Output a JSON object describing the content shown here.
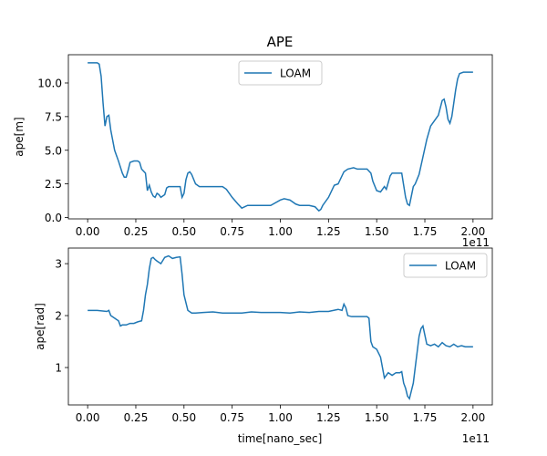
{
  "chart_data": [
    {
      "type": "line",
      "title": "APE",
      "xlabel": "",
      "ylabel": "ape[m]",
      "offset_label": "1e11",
      "xlim": [
        -0.1,
        2.1
      ],
      "ylim": [
        -0.1,
        12.1
      ],
      "xticks": [
        "0.00",
        "0.25",
        "0.50",
        "0.75",
        "1.00",
        "1.25",
        "1.50",
        "1.75",
        "2.00"
      ],
      "yticks": [
        "0.0",
        "2.5",
        "5.0",
        "7.5",
        "10.0"
      ],
      "legend": "top-center",
      "series": [
        {
          "name": "LOAM",
          "color": "#1f77b4",
          "x": [
            0.0,
            0.05,
            0.06,
            0.07,
            0.08,
            0.09,
            0.1,
            0.11,
            0.12,
            0.14,
            0.16,
            0.18,
            0.19,
            0.2,
            0.21,
            0.22,
            0.24,
            0.26,
            0.27,
            0.28,
            0.3,
            0.31,
            0.32,
            0.33,
            0.34,
            0.35,
            0.36,
            0.37,
            0.38,
            0.39,
            0.4,
            0.41,
            0.42,
            0.45,
            0.48,
            0.49,
            0.5,
            0.51,
            0.52,
            0.53,
            0.54,
            0.56,
            0.58,
            0.6,
            0.65,
            0.7,
            0.72,
            0.75,
            0.78,
            0.8,
            0.83,
            0.85,
            0.88,
            0.9,
            0.95,
            1.0,
            1.02,
            1.05,
            1.08,
            1.1,
            1.15,
            1.18,
            1.2,
            1.21,
            1.22,
            1.25,
            1.28,
            1.3,
            1.33,
            1.35,
            1.38,
            1.4,
            1.45,
            1.47,
            1.48,
            1.5,
            1.52,
            1.54,
            1.55,
            1.57,
            1.58,
            1.6,
            1.63,
            1.64,
            1.65,
            1.66,
            1.67,
            1.68,
            1.69,
            1.7,
            1.72,
            1.74,
            1.76,
            1.78,
            1.8,
            1.82,
            1.84,
            1.85,
            1.86,
            1.87,
            1.88,
            1.89,
            1.9,
            1.91,
            1.92,
            1.93,
            1.95,
            1.97,
            2.0
          ],
          "y": [
            11.5,
            11.5,
            11.4,
            10.5,
            8.5,
            6.8,
            7.5,
            7.6,
            6.5,
            5.0,
            4.2,
            3.3,
            3.0,
            3.0,
            3.5,
            4.1,
            4.2,
            4.2,
            4.1,
            3.6,
            3.3,
            2.0,
            2.4,
            1.9,
            1.6,
            1.5,
            1.8,
            1.7,
            1.5,
            1.6,
            1.7,
            2.2,
            2.3,
            2.3,
            2.3,
            1.5,
            1.8,
            2.8,
            3.3,
            3.4,
            3.2,
            2.5,
            2.3,
            2.3,
            2.3,
            2.3,
            2.1,
            1.5,
            1.0,
            0.7,
            0.9,
            0.9,
            0.9,
            0.9,
            0.9,
            1.3,
            1.4,
            1.3,
            1.0,
            0.9,
            0.9,
            0.8,
            0.5,
            0.6,
            0.9,
            1.5,
            2.4,
            2.5,
            3.4,
            3.6,
            3.7,
            3.6,
            3.6,
            3.3,
            2.7,
            2.0,
            1.9,
            2.3,
            2.1,
            3.1,
            3.3,
            3.3,
            3.3,
            2.4,
            1.5,
            1.0,
            0.9,
            1.6,
            2.3,
            2.5,
            3.2,
            4.5,
            5.8,
            6.8,
            7.2,
            7.6,
            8.7,
            8.8,
            8.2,
            7.3,
            7.0,
            7.5,
            8.5,
            9.5,
            10.3,
            10.7,
            10.8,
            10.8,
            10.8
          ]
        }
      ]
    },
    {
      "type": "line",
      "title": "",
      "xlabel": "time[nano_sec]",
      "ylabel": "ape[rad]",
      "offset_label": "1e11",
      "xlim": [
        -0.1,
        2.1
      ],
      "ylim": [
        0.28,
        3.3
      ],
      "xticks": [
        "0.00",
        "0.25",
        "0.50",
        "0.75",
        "1.00",
        "1.25",
        "1.50",
        "1.75",
        "2.00"
      ],
      "yticks": [
        "1",
        "2",
        "3"
      ],
      "legend": "top-right",
      "series": [
        {
          "name": "LOAM",
          "color": "#1f77b4",
          "x": [
            0.0,
            0.05,
            0.1,
            0.11,
            0.12,
            0.14,
            0.16,
            0.17,
            0.18,
            0.2,
            0.22,
            0.24,
            0.26,
            0.28,
            0.29,
            0.3,
            0.31,
            0.32,
            0.33,
            0.34,
            0.35,
            0.36,
            0.38,
            0.4,
            0.42,
            0.44,
            0.46,
            0.48,
            0.49,
            0.5,
            0.51,
            0.52,
            0.54,
            0.56,
            0.6,
            0.65,
            0.7,
            0.75,
            0.8,
            0.85,
            0.9,
            0.95,
            1.0,
            1.05,
            1.1,
            1.15,
            1.2,
            1.25,
            1.3,
            1.32,
            1.33,
            1.34,
            1.35,
            1.37,
            1.4,
            1.45,
            1.46,
            1.47,
            1.48,
            1.5,
            1.52,
            1.53,
            1.54,
            1.56,
            1.58,
            1.6,
            1.62,
            1.63,
            1.64,
            1.65,
            1.66,
            1.67,
            1.68,
            1.69,
            1.7,
            1.71,
            1.72,
            1.73,
            1.74,
            1.76,
            1.78,
            1.8,
            1.82,
            1.84,
            1.86,
            1.88,
            1.9,
            1.92,
            1.94,
            1.96,
            2.0
          ],
          "y": [
            2.1,
            2.1,
            2.08,
            2.1,
            2.0,
            1.95,
            1.9,
            1.8,
            1.82,
            1.82,
            1.85,
            1.85,
            1.88,
            1.9,
            2.1,
            2.4,
            2.6,
            2.9,
            3.1,
            3.12,
            3.08,
            3.05,
            3.0,
            3.12,
            3.15,
            3.1,
            3.12,
            3.13,
            2.8,
            2.4,
            2.25,
            2.1,
            2.05,
            2.05,
            2.06,
            2.07,
            2.05,
            2.05,
            2.05,
            2.07,
            2.06,
            2.06,
            2.06,
            2.05,
            2.07,
            2.06,
            2.08,
            2.08,
            2.12,
            2.1,
            2.22,
            2.15,
            2.0,
            1.98,
            1.98,
            1.98,
            1.95,
            1.5,
            1.4,
            1.35,
            1.2,
            1.0,
            0.8,
            0.9,
            0.85,
            0.9,
            0.9,
            0.92,
            0.7,
            0.6,
            0.45,
            0.4,
            0.55,
            0.7,
            1.0,
            1.3,
            1.6,
            1.75,
            1.8,
            1.45,
            1.42,
            1.45,
            1.4,
            1.48,
            1.42,
            1.4,
            1.45,
            1.4,
            1.42,
            1.4,
            1.4
          ]
        }
      ]
    }
  ]
}
